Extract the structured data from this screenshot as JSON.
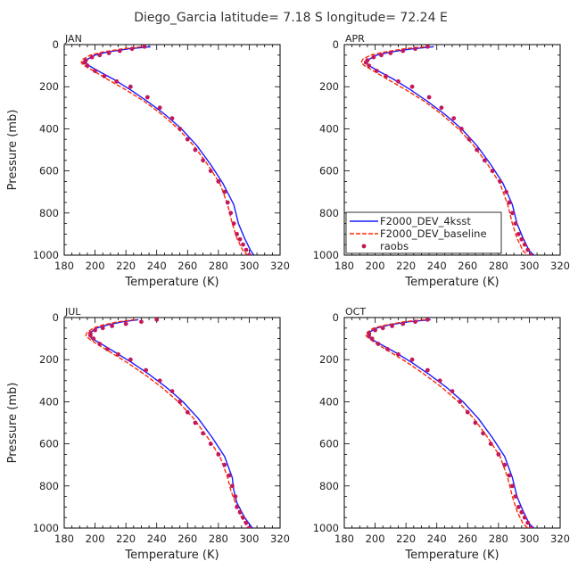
{
  "title": "Diego_Garcia   latitude=  7.18 S  longitude=  72.24 E",
  "colors": {
    "model_4ksst": "#1a1aff",
    "model_baseline": "#ff2a00",
    "raobs": "#c2185b"
  },
  "chart_data": [
    {
      "type": "line",
      "panel": "JAN",
      "xlabel": "Temperature (K)",
      "ylabel": "Pressure (mb)",
      "xlim": [
        180,
        320
      ],
      "ylim": [
        1000,
        0
      ],
      "xticks": [
        "180",
        "200",
        "220",
        "240",
        "260",
        "280",
        "300",
        "320"
      ],
      "yticks": [
        "0",
        "200",
        "400",
        "600",
        "800",
        "1000"
      ],
      "series": [
        {
          "name": "F2000_DEV_4ksst",
          "style": "solid",
          "x": [
            236,
            222,
            208,
            200,
            195,
            194,
            196,
            202,
            212,
            223,
            234,
            245,
            256,
            266,
            275,
            283,
            290,
            293,
            297,
            301,
            303
          ],
          "y": [
            10,
            20,
            35,
            50,
            70,
            85,
            100,
            125,
            165,
            215,
            270,
            330,
            400,
            480,
            570,
            660,
            760,
            850,
            920,
            980,
            1000
          ]
        },
        {
          "name": "F2000_DEV_baseline",
          "style": "dashed",
          "x": [
            230,
            218,
            205,
            197,
            192,
            191,
            193,
            199,
            208,
            220,
            232,
            243,
            254,
            264,
            273,
            281,
            286,
            289,
            292,
            296,
            299
          ],
          "y": [
            10,
            20,
            35,
            50,
            70,
            85,
            100,
            125,
            165,
            215,
            270,
            330,
            400,
            480,
            570,
            660,
            760,
            850,
            920,
            980,
            1000
          ]
        },
        {
          "name": "raobs",
          "style": "dots",
          "x": [
            232,
            224,
            216,
            209,
            203,
            198,
            194,
            193,
            195,
            200,
            206,
            214,
            223,
            234,
            242,
            250,
            255,
            260,
            265,
            270,
            275,
            280,
            284,
            286,
            288,
            290,
            292,
            294,
            296,
            298,
            300
          ],
          "y": [
            10,
            20,
            30,
            40,
            50,
            60,
            75,
            85,
            100,
            125,
            150,
            175,
            200,
            250,
            300,
            350,
            400,
            450,
            500,
            550,
            600,
            650,
            700,
            750,
            800,
            850,
            900,
            925,
            950,
            975,
            1000
          ]
        }
      ]
    },
    {
      "type": "line",
      "panel": "APR",
      "xlabel": "Temperature (K)",
      "ylabel": "",
      "xlim": [
        180,
        320
      ],
      "ylim": [
        1000,
        0
      ],
      "xticks": [
        "180",
        "200",
        "220",
        "240",
        "260",
        "280",
        "300",
        "320"
      ],
      "yticks": [
        "0",
        "200",
        "400",
        "600",
        "800",
        "1000"
      ],
      "legend": "bottom-left",
      "series": [
        {
          "name": "F2000_DEV_4ksst",
          "style": "solid",
          "x": [
            238,
            224,
            210,
            201,
            196,
            194,
            196,
            202,
            212,
            223,
            234,
            245,
            256,
            266,
            275,
            283,
            289,
            292,
            296,
            300,
            303
          ],
          "y": [
            10,
            20,
            35,
            50,
            70,
            85,
            100,
            125,
            165,
            215,
            270,
            330,
            400,
            480,
            570,
            660,
            760,
            850,
            920,
            980,
            1000
          ]
        },
        {
          "name": "F2000_DEV_baseline",
          "style": "dashed",
          "x": [
            232,
            219,
            206,
            197,
            192,
            191,
            193,
            199,
            208,
            220,
            232,
            243,
            254,
            264,
            273,
            281,
            286,
            289,
            292,
            296,
            299
          ],
          "y": [
            10,
            20,
            35,
            50,
            70,
            85,
            100,
            125,
            165,
            215,
            270,
            330,
            400,
            480,
            570,
            660,
            760,
            850,
            920,
            980,
            1000
          ]
        },
        {
          "name": "raobs",
          "style": "dots",
          "x": [
            234,
            226,
            218,
            210,
            204,
            199,
            195,
            194,
            196,
            201,
            207,
            215,
            224,
            235,
            243,
            251,
            256,
            261,
            266,
            271,
            276,
            281,
            285,
            287,
            289,
            291,
            293,
            295,
            297,
            299,
            301
          ],
          "y": [
            10,
            20,
            30,
            40,
            50,
            60,
            75,
            85,
            100,
            125,
            150,
            175,
            200,
            250,
            300,
            350,
            400,
            450,
            500,
            550,
            600,
            650,
            700,
            750,
            800,
            850,
            900,
            925,
            950,
            975,
            1000
          ]
        }
      ]
    },
    {
      "type": "line",
      "panel": "JUL",
      "xlabel": "Temperature (K)",
      "ylabel": "Pressure (mb)",
      "xlim": [
        180,
        320
      ],
      "ylim": [
        1000,
        0
      ],
      "xticks": [
        "180",
        "200",
        "220",
        "240",
        "260",
        "280",
        "300",
        "320"
      ],
      "yticks": [
        "0",
        "200",
        "400",
        "600",
        "800",
        "1000"
      ],
      "series": [
        {
          "name": "F2000_DEV_4ksst",
          "style": "solid",
          "x": [
            228,
            218,
            208,
            201,
            197,
            196,
            198,
            204,
            213,
            224,
            235,
            246,
            257,
            267,
            276,
            284,
            289,
            290,
            292,
            297,
            302
          ],
          "y": [
            10,
            20,
            35,
            50,
            70,
            85,
            100,
            125,
            165,
            215,
            270,
            330,
            400,
            480,
            570,
            660,
            760,
            820,
            880,
            950,
            1000
          ]
        },
        {
          "name": "F2000_DEV_baseline",
          "style": "dashed",
          "x": [
            226,
            215,
            205,
            199,
            195,
            194,
            196,
            201,
            210,
            221,
            232,
            243,
            254,
            264,
            273,
            281,
            286,
            288,
            291,
            295,
            299
          ],
          "y": [
            10,
            20,
            35,
            50,
            70,
            85,
            100,
            125,
            165,
            215,
            270,
            330,
            400,
            480,
            570,
            660,
            760,
            820,
            880,
            950,
            1000
          ]
        },
        {
          "name": "raobs",
          "style": "dots",
          "x": [
            240,
            230,
            220,
            211,
            205,
            200,
            197,
            197,
            199,
            203,
            208,
            215,
            223,
            233,
            242,
            250,
            255,
            260,
            265,
            270,
            275,
            280,
            284,
            287,
            289,
            291,
            292,
            294,
            296,
            298,
            300
          ],
          "y": [
            10,
            20,
            30,
            40,
            50,
            60,
            75,
            85,
            100,
            125,
            150,
            175,
            200,
            250,
            300,
            350,
            400,
            450,
            500,
            550,
            600,
            650,
            700,
            750,
            800,
            850,
            900,
            925,
            950,
            975,
            1000
          ]
        }
      ]
    },
    {
      "type": "line",
      "panel": "OCT",
      "xlabel": "Temperature (K)",
      "ylabel": "",
      "xlim": [
        180,
        320
      ],
      "ylim": [
        1000,
        0
      ],
      "xticks": [
        "180",
        "200",
        "220",
        "240",
        "260",
        "280",
        "300",
        "320"
      ],
      "yticks": [
        "0",
        "200",
        "400",
        "600",
        "800",
        "1000"
      ],
      "series": [
        {
          "name": "F2000_DEV_4ksst",
          "style": "solid",
          "x": [
            236,
            222,
            209,
            201,
            196,
            195,
            197,
            203,
            213,
            224,
            235,
            246,
            257,
            267,
            276,
            284,
            289,
            292,
            296,
            300,
            303
          ],
          "y": [
            10,
            20,
            35,
            50,
            70,
            85,
            100,
            125,
            165,
            215,
            270,
            330,
            400,
            480,
            570,
            660,
            760,
            850,
            920,
            980,
            1000
          ]
        },
        {
          "name": "F2000_DEV_baseline",
          "style": "dashed",
          "x": [
            232,
            219,
            207,
            199,
            195,
            194,
            196,
            201,
            210,
            221,
            232,
            243,
            254,
            264,
            273,
            281,
            286,
            289,
            292,
            296,
            299
          ],
          "y": [
            10,
            20,
            35,
            50,
            70,
            85,
            100,
            125,
            165,
            215,
            270,
            330,
            400,
            480,
            570,
            660,
            760,
            850,
            920,
            980,
            1000
          ]
        },
        {
          "name": "raobs",
          "style": "dots",
          "x": [
            234,
            226,
            218,
            211,
            205,
            200,
            196,
            196,
            198,
            202,
            208,
            215,
            224,
            234,
            242,
            250,
            255,
            260,
            265,
            270,
            275,
            280,
            284,
            287,
            289,
            291,
            293,
            295,
            297,
            299,
            301
          ],
          "y": [
            10,
            20,
            30,
            40,
            50,
            60,
            75,
            85,
            100,
            125,
            150,
            175,
            200,
            250,
            300,
            350,
            400,
            450,
            500,
            550,
            600,
            650,
            700,
            750,
            800,
            850,
            900,
            925,
            950,
            975,
            1000
          ]
        }
      ]
    }
  ]
}
